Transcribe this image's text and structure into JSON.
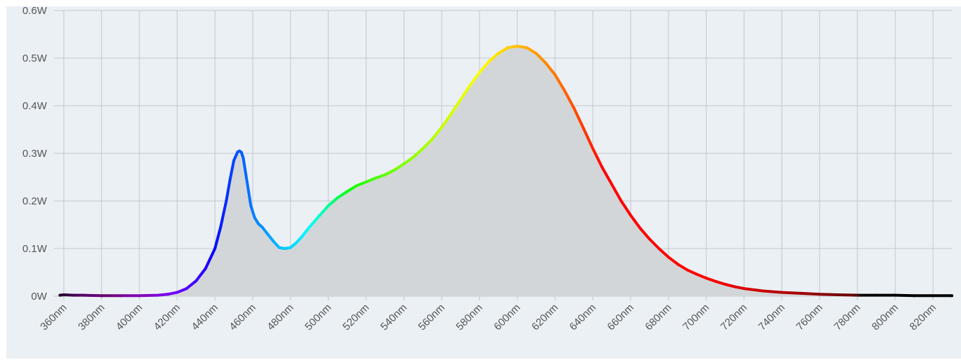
{
  "chart_data": {
    "type": "area",
    "title": "",
    "xlabel": "",
    "ylabel": "",
    "x_unit": "nm",
    "y_unit": "W",
    "xlim": [
      357,
      830
    ],
    "ylim": [
      0,
      0.6
    ],
    "grid": true,
    "legend": "none",
    "colors": {
      "plot_background": "#ebf0f5",
      "fill": "#d3d6d8",
      "grid": "#c2c7cc",
      "tick_label": "#555555"
    },
    "x_ticks": [
      {
        "value": 360,
        "label": "360nm"
      },
      {
        "value": 380,
        "label": "380nm"
      },
      {
        "value": 400,
        "label": "400nm"
      },
      {
        "value": 420,
        "label": "420nm"
      },
      {
        "value": 440,
        "label": "440nm"
      },
      {
        "value": 460,
        "label": "460nm"
      },
      {
        "value": 480,
        "label": "480nm"
      },
      {
        "value": 500,
        "label": "500nm"
      },
      {
        "value": 520,
        "label": "520nm"
      },
      {
        "value": 540,
        "label": "540nm"
      },
      {
        "value": 560,
        "label": "560nm"
      },
      {
        "value": 580,
        "label": "580nm"
      },
      {
        "value": 600,
        "label": "600nm"
      },
      {
        "value": 620,
        "label": "620nm"
      },
      {
        "value": 640,
        "label": "640nm"
      },
      {
        "value": 660,
        "label": "660nm"
      },
      {
        "value": 680,
        "label": "680nm"
      },
      {
        "value": 700,
        "label": "700nm"
      },
      {
        "value": 720,
        "label": "720nm"
      },
      {
        "value": 740,
        "label": "740nm"
      },
      {
        "value": 760,
        "label": "760nm"
      },
      {
        "value": 780,
        "label": "780nm"
      },
      {
        "value": 800,
        "label": "800nm"
      },
      {
        "value": 820,
        "label": "820nm"
      }
    ],
    "y_ticks": [
      {
        "value": 0,
        "label": "0W"
      },
      {
        "value": 0.1,
        "label": "0.1W"
      },
      {
        "value": 0.2,
        "label": "0.2W"
      },
      {
        "value": 0.3,
        "label": "0.3W"
      },
      {
        "value": 0.4,
        "label": "0.4W"
      },
      {
        "value": 0.5,
        "label": "0.5W"
      },
      {
        "value": 0.6,
        "label": "0.6W"
      }
    ],
    "series": [
      {
        "x": [
          358,
          360,
          365,
          370,
          380,
          390,
          400,
          410,
          415,
          420,
          425,
          430,
          435,
          440,
          443,
          446,
          448,
          450,
          452,
          453,
          454,
          455,
          457,
          459,
          461,
          463,
          465,
          468,
          471,
          474,
          477,
          480,
          483,
          486,
          490,
          495,
          500,
          505,
          510,
          515,
          520,
          525,
          530,
          535,
          540,
          545,
          550,
          555,
          560,
          565,
          570,
          575,
          580,
          585,
          590,
          595,
          600,
          605,
          610,
          615,
          620,
          625,
          630,
          635,
          640,
          645,
          650,
          655,
          660,
          665,
          670,
          675,
          680,
          685,
          690,
          695,
          700,
          705,
          710,
          715,
          720,
          730,
          740,
          750,
          760,
          770,
          780,
          790,
          800,
          810,
          820,
          830
        ],
        "y": [
          0.002,
          0.003,
          0.002,
          0.002,
          0.001,
          0.001,
          0.001,
          0.002,
          0.004,
          0.008,
          0.016,
          0.032,
          0.058,
          0.1,
          0.145,
          0.2,
          0.245,
          0.285,
          0.303,
          0.305,
          0.302,
          0.29,
          0.24,
          0.19,
          0.165,
          0.152,
          0.145,
          0.13,
          0.115,
          0.102,
          0.1,
          0.102,
          0.112,
          0.125,
          0.145,
          0.168,
          0.19,
          0.207,
          0.22,
          0.232,
          0.24,
          0.248,
          0.255,
          0.265,
          0.278,
          0.292,
          0.31,
          0.33,
          0.355,
          0.383,
          0.413,
          0.443,
          0.47,
          0.493,
          0.51,
          0.522,
          0.525,
          0.522,
          0.51,
          0.49,
          0.465,
          0.432,
          0.395,
          0.353,
          0.31,
          0.27,
          0.235,
          0.2,
          0.17,
          0.143,
          0.12,
          0.1,
          0.082,
          0.067,
          0.055,
          0.046,
          0.038,
          0.031,
          0.025,
          0.02,
          0.016,
          0.011,
          0.008,
          0.006,
          0.004,
          0.003,
          0.002,
          0.002,
          0.002,
          0.001,
          0.001,
          0.001
        ]
      }
    ]
  }
}
